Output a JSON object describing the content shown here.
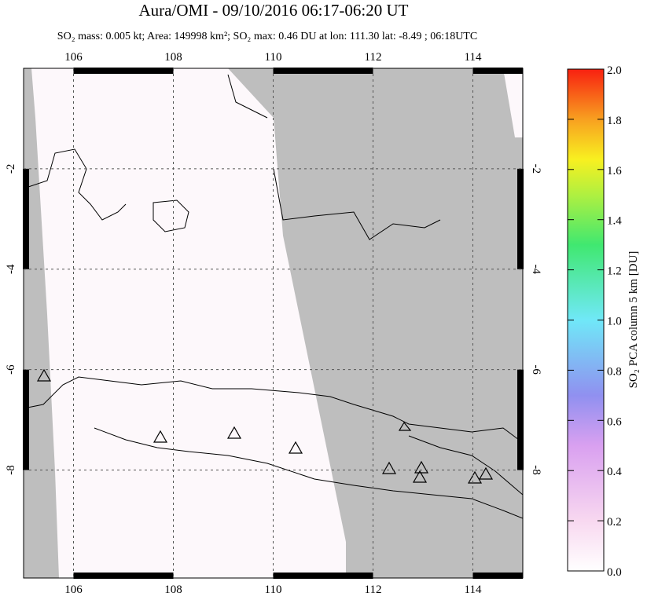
{
  "chart_data": {
    "type": "map",
    "title": "Aura/OMI - 09/10/2016 06:17-06:20 UT",
    "subtitle": "SO₂ mass: 0.005 kt; Area: 149998 km²; SO₂ max: 0.46 DU at lon: 111.30 lat: -8.49 ; 06:18UTC",
    "xlim": [
      105,
      115
    ],
    "xticks": [
      106,
      108,
      110,
      112,
      114
    ],
    "ylim": [
      -10.15,
      0
    ],
    "yticks": [
      -2,
      -4,
      -6,
      -8
    ],
    "colorbar": {
      "label": "SO₂ PCA column 5 km [DU]",
      "lim": [
        0,
        2
      ],
      "ticks": [
        {
          "value": 0,
          "label": "0.0"
        },
        0.2,
        0.4,
        0.6,
        0.8,
        {
          "value": 1,
          "label": "1.0"
        },
        1.2,
        1.4,
        1.6,
        1.8,
        {
          "value": 2,
          "label": "2.0"
        }
      ]
    }
  }
}
